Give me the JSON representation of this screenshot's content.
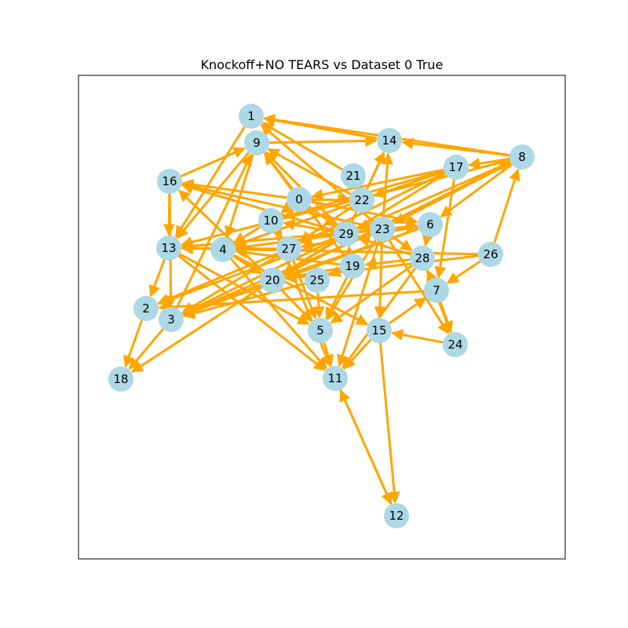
{
  "title": "Knockoff+NO TEARS vs Dataset 0 True",
  "colors": {
    "edge": "#FFA500",
    "node": "#ADD8E6",
    "frame": "#000000"
  },
  "nodes": [
    "0",
    "1",
    "2",
    "3",
    "4",
    "5",
    "6",
    "7",
    "8",
    "9",
    "10",
    "11",
    "12",
    "13",
    "14",
    "15",
    "16",
    "17",
    "18",
    "19",
    "20",
    "21",
    "22",
    "23",
    "24",
    "25",
    "26",
    "27",
    "28",
    "29"
  ],
  "edges": [
    [
      "14",
      "1"
    ],
    [
      "8",
      "1"
    ],
    [
      "9",
      "14"
    ],
    [
      "21",
      "1"
    ],
    [
      "22",
      "9"
    ],
    [
      "29",
      "9"
    ],
    [
      "23",
      "1"
    ],
    [
      "16",
      "9"
    ],
    [
      "1",
      "13"
    ],
    [
      "9",
      "13"
    ],
    [
      "9",
      "4"
    ],
    [
      "3",
      "9"
    ],
    [
      "0",
      "9"
    ],
    [
      "19",
      "9"
    ],
    [
      "0",
      "16"
    ],
    [
      "29",
      "16"
    ],
    [
      "23",
      "16"
    ],
    [
      "20",
      "16"
    ],
    [
      "16",
      "13"
    ],
    [
      "16",
      "3"
    ],
    [
      "8",
      "17"
    ],
    [
      "8",
      "14"
    ],
    [
      "8",
      "23"
    ],
    [
      "8",
      "29"
    ],
    [
      "8",
      "6"
    ],
    [
      "8",
      "13"
    ],
    [
      "26",
      "8"
    ],
    [
      "20",
      "8"
    ],
    [
      "17",
      "22"
    ],
    [
      "17",
      "0"
    ],
    [
      "17",
      "20"
    ],
    [
      "17",
      "27"
    ],
    [
      "17",
      "10"
    ],
    [
      "17",
      "7"
    ],
    [
      "26",
      "7"
    ],
    [
      "7",
      "2"
    ],
    [
      "28",
      "29"
    ],
    [
      "22",
      "14"
    ],
    [
      "23",
      "14"
    ],
    [
      "29",
      "14"
    ],
    [
      "22",
      "4"
    ],
    [
      "22",
      "27"
    ],
    [
      "23",
      "4"
    ],
    [
      "23",
      "13"
    ],
    [
      "23",
      "6"
    ],
    [
      "23",
      "28"
    ],
    [
      "23",
      "24"
    ],
    [
      "23",
      "3"
    ],
    [
      "23",
      "5"
    ],
    [
      "23",
      "15"
    ],
    [
      "23",
      "11"
    ],
    [
      "29",
      "10"
    ],
    [
      "29",
      "3"
    ],
    [
      "29",
      "20"
    ],
    [
      "29",
      "2"
    ],
    [
      "0",
      "29"
    ],
    [
      "0",
      "6"
    ],
    [
      "0",
      "22"
    ],
    [
      "0",
      "10"
    ],
    [
      "6",
      "20"
    ],
    [
      "6",
      "3"
    ],
    [
      "6",
      "27"
    ],
    [
      "6",
      "28"
    ],
    [
      "28",
      "19"
    ],
    [
      "28",
      "24"
    ],
    [
      "28",
      "5"
    ],
    [
      "28",
      "11"
    ],
    [
      "26",
      "13"
    ],
    [
      "26",
      "20"
    ],
    [
      "10",
      "4"
    ],
    [
      "10",
      "27"
    ],
    [
      "10",
      "11"
    ],
    [
      "27",
      "5"
    ],
    [
      "27",
      "3"
    ],
    [
      "27",
      "2"
    ],
    [
      "27",
      "13"
    ],
    [
      "13",
      "5"
    ],
    [
      "13",
      "2"
    ],
    [
      "13",
      "11"
    ],
    [
      "4",
      "11"
    ],
    [
      "4",
      "20"
    ],
    [
      "4",
      "15"
    ],
    [
      "20",
      "18"
    ],
    [
      "20",
      "3"
    ],
    [
      "2",
      "18"
    ],
    [
      "3",
      "18"
    ],
    [
      "20",
      "5"
    ],
    [
      "25",
      "5"
    ],
    [
      "25",
      "3"
    ],
    [
      "19",
      "25"
    ],
    [
      "19",
      "5"
    ],
    [
      "19",
      "4"
    ],
    [
      "19",
      "20"
    ],
    [
      "19",
      "29"
    ],
    [
      "15",
      "11"
    ],
    [
      "15",
      "12"
    ],
    [
      "12",
      "11"
    ],
    [
      "11",
      "12"
    ],
    [
      "5",
      "11"
    ],
    [
      "15",
      "7"
    ],
    [
      "24",
      "15"
    ],
    [
      "7",
      "24"
    ],
    [
      "7",
      "28"
    ]
  ]
}
